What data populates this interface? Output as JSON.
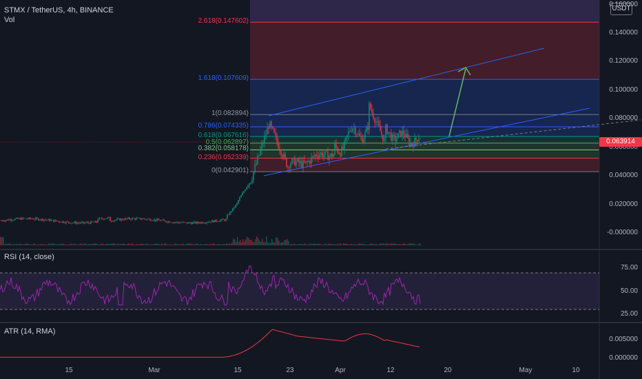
{
  "header": {
    "symbol_line": "STMX / TetherUS, 4h, BINANCE",
    "vol_label": "Vol"
  },
  "currency_button": "USDT",
  "current_price": "0.063914",
  "fib_levels": [
    {
      "label": "2.618(0.147602)",
      "value": 0.147602,
      "color": "#f23645"
    },
    {
      "label": "1.618(0.107609)",
      "value": 0.107609,
      "color": "#2962ff"
    },
    {
      "label": "1(0.082894)",
      "value": 0.082894,
      "color": "#787b86"
    },
    {
      "label": "0.786(0.074335)",
      "value": 0.074335,
      "color": "#2962ff"
    },
    {
      "label": "0.618(0.067616)",
      "value": 0.067616,
      "color": "#089981"
    },
    {
      "label": "0.5(0.062897)",
      "value": 0.062897,
      "color": "#4caf50"
    },
    {
      "label": "0.382(0.058178)",
      "value": 0.058178,
      "color": "#81c784"
    },
    {
      "label": "0.236(0.052339)",
      "value": 0.052339,
      "color": "#f23645"
    },
    {
      "label": "0(0.042901)",
      "value": 0.042901,
      "color": "#787b86"
    }
  ],
  "price_axis": [
    "0.160000",
    "0.140000",
    "0.120000",
    "0.100000",
    "0.080000",
    "0.060000",
    "0.040000",
    "0.020000",
    "-0.000000"
  ],
  "rsi": {
    "label": "RSI (14, close)",
    "axis": [
      "75.00",
      "50.00",
      "25.00"
    ],
    "upper_band": 70,
    "lower_band": 30
  },
  "atr": {
    "label": "ATR (14, RMA)",
    "axis": [
      "0.005000",
      "0.000000"
    ]
  },
  "time_axis": [
    "15",
    "Mar",
    "15",
    "23",
    "Apr",
    "12",
    "20",
    "May",
    "10"
  ],
  "colors": {
    "background": "#131722",
    "rsi_line": "#9c27b0",
    "atr_line": "#f23645",
    "arrow": "#66bb6a",
    "channel": "#2962ff"
  }
}
